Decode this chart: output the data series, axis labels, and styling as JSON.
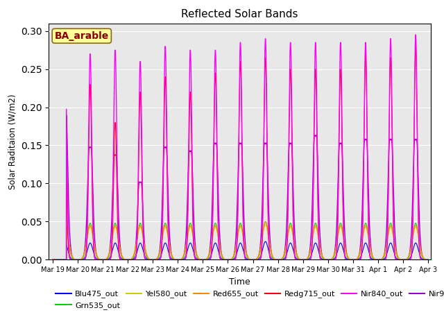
{
  "title": "Reflected Solar Bands",
  "xlabel": "Time",
  "ylabel": "Solar Raditaion (W/m2)",
  "ylim": [
    0,
    0.31
  ],
  "yticks": [
    0.0,
    0.05,
    0.1,
    0.15,
    0.2,
    0.25,
    0.3
  ],
  "annotation_text": "BA_arable",
  "annotation_color": "#8B0000",
  "annotation_bg": "#FFFF99",
  "annotation_border": "#8B6914",
  "series": {
    "Blu475_out": {
      "color": "#0000FF",
      "lw": 0.8,
      "zorder": 4
    },
    "Grn535_out": {
      "color": "#00CC00",
      "lw": 0.8,
      "zorder": 5
    },
    "Yel580_out": {
      "color": "#CCCC00",
      "lw": 0.8,
      "zorder": 6
    },
    "Red655_out": {
      "color": "#FF8800",
      "lw": 0.8,
      "zorder": 7
    },
    "Redg715_out": {
      "color": "#FF0000",
      "lw": 0.8,
      "zorder": 8
    },
    "Nir840_out": {
      "color": "#FF00FF",
      "lw": 1.0,
      "zorder": 9
    },
    "Nir945_out": {
      "color": "#9900CC",
      "lw": 1.0,
      "zorder": 3
    }
  },
  "n_days": 15,
  "start_day": 19,
  "bg_color": "#E8E8E8",
  "fig_bg": "#FFFFFF",
  "legend_ncol": 6,
  "legend_fontsize": 8.0
}
